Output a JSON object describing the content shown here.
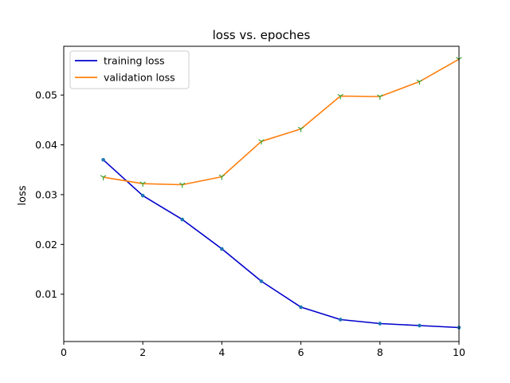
{
  "chart_data": {
    "type": "line",
    "title": "loss vs. epoches",
    "xlabel": "",
    "ylabel": "loss",
    "xlim": [
      0,
      10
    ],
    "ylim": [
      0.0005,
      0.0598
    ],
    "xticks": [
      0,
      2,
      4,
      6,
      8,
      10
    ],
    "xtick_labels": [
      "0",
      "2",
      "4",
      "6",
      "8",
      "10"
    ],
    "yticks": [
      0.01,
      0.02,
      0.03,
      0.04,
      0.05
    ],
    "ytick_labels": [
      "0.01",
      "0.02",
      "0.03",
      "0.04",
      "0.05"
    ],
    "grid": false,
    "legend_position": "top-left",
    "x": [
      1,
      2,
      3,
      4,
      5,
      6,
      7,
      8,
      9,
      10
    ],
    "series": [
      {
        "name": "training loss",
        "color": "#0000cc",
        "marker_color": "#1f77b4",
        "marker": "dot",
        "values": [
          0.037,
          0.0298,
          0.025,
          0.0191,
          0.0126,
          0.0074,
          0.0049,
          0.0041,
          0.0037,
          0.0033
        ]
      },
      {
        "name": "validation loss",
        "color": "#ff7f0e",
        "marker_color": "#2ca02c",
        "marker": "tri_down",
        "values": [
          0.0335,
          0.0322,
          0.032,
          0.0336,
          0.0407,
          0.0432,
          0.0498,
          0.0497,
          0.0527,
          0.0572
        ]
      }
    ]
  }
}
